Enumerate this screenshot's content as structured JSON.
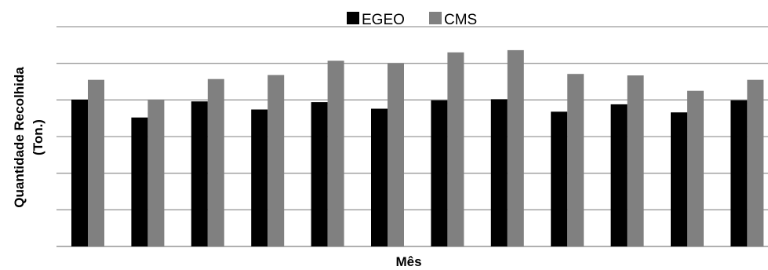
{
  "chart_data": {
    "type": "bar",
    "title": "",
    "xlabel": "Mês",
    "ylabel": "Quantidade Recolhida (Ton.)",
    "ylabel_lines": [
      "Quantidade Recolhida",
      "(Ton.)"
    ],
    "legend": "top",
    "grid": true,
    "ylim": [
      0,
      6
    ],
    "categories": [
      "",
      "",
      "",
      "",
      "",
      "",
      "",
      "",
      "",
      "",
      "",
      ""
    ],
    "series": [
      {
        "name": "EGEO",
        "color": "#000000",
        "values": [
          4.01,
          3.52,
          3.96,
          3.74,
          3.94,
          3.76,
          3.99,
          4.02,
          3.68,
          3.88,
          3.66,
          3.99
        ]
      },
      {
        "name": "CMS",
        "color": "#808080",
        "values": [
          4.55,
          4.01,
          4.57,
          4.68,
          5.07,
          5.0,
          5.3,
          5.36,
          4.71,
          4.67,
          4.25,
          4.55
        ]
      }
    ]
  }
}
